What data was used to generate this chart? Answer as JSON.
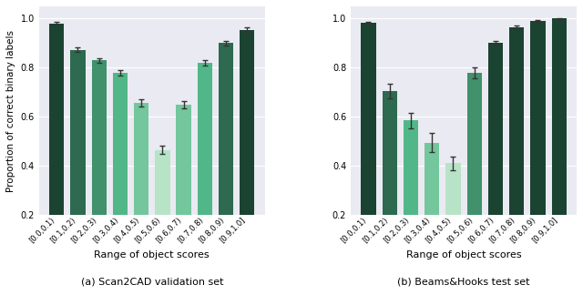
{
  "categories": [
    "[0.0,0.1)",
    "[0.1,0.2)",
    "[0.2,0.3)",
    "[0.3,0.4)",
    "[0.4,0.5)",
    "[0.5,0.6)",
    "[0.6,0.7)",
    "[0.7,0.8)",
    "[0.8,0.9)",
    "[0.9,1.0]"
  ],
  "subplot_a": {
    "title": "(a) Scan2CAD validation set",
    "values": [
      0.98,
      0.873,
      0.83,
      0.778,
      0.655,
      0.465,
      0.648,
      0.82,
      0.9,
      0.955
    ],
    "errors": [
      0.005,
      0.008,
      0.01,
      0.012,
      0.015,
      0.018,
      0.015,
      0.012,
      0.01,
      0.008
    ],
    "colors": [
      "#1b4332",
      "#2d6a4f",
      "#40916c",
      "#52b788",
      "#74c69d",
      "#b7e4c7",
      "#74c69d",
      "#52b788",
      "#2d6a4f",
      "#1b4332"
    ]
  },
  "subplot_b": {
    "title": "(b) Beams&Hooks test set",
    "values": [
      0.982,
      0.705,
      0.585,
      0.495,
      0.41,
      0.778,
      0.9,
      0.965,
      0.99,
      1.0
    ],
    "errors": [
      0.006,
      0.03,
      0.032,
      0.038,
      0.028,
      0.022,
      0.01,
      0.008,
      0.006,
      0.003
    ],
    "colors": [
      "#1b4332",
      "#2d6a4f",
      "#52b788",
      "#74c69d",
      "#b7e4c7",
      "#40916c",
      "#1b4332",
      "#1b4332",
      "#1b4332",
      "#1b4332"
    ]
  },
  "ylabel": "Proportion of correct binary labels",
  "xlabel": "Range of object scores",
  "ylim": [
    0.2,
    1.05
  ],
  "yticks": [
    0.2,
    0.4,
    0.6,
    0.8,
    1.0
  ],
  "background_color": "#eaeaf2",
  "caption_a": "(a) Scan2CAD validation set",
  "caption_b": "(b) Beams&Hooks test set",
  "bar_width": 0.7
}
